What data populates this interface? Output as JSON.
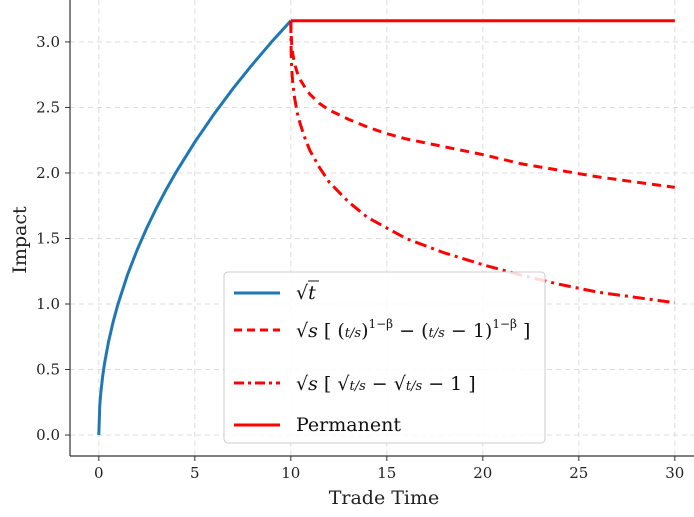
{
  "chart_data": {
    "type": "line",
    "title": "",
    "xlabel": "Trade Time",
    "ylabel": "Impact",
    "xlim": [
      -1.5,
      31.0
    ],
    "ylim": [
      -0.16,
      3.32
    ],
    "xticks": [
      0,
      5,
      10,
      15,
      20,
      25,
      30
    ],
    "yticks": [
      0.0,
      0.5,
      1.0,
      1.5,
      2.0,
      2.5,
      3.0
    ],
    "xtick_labels": [
      "0",
      "5",
      "10",
      "15",
      "20",
      "25",
      "30"
    ],
    "ytick_labels": [
      "0.0",
      "0.5",
      "1.0",
      "1.5",
      "2.0",
      "2.5",
      "3.0"
    ],
    "grid": true,
    "legend_position": "lower-center",
    "series": [
      {
        "name": "√t",
        "color": "#1f77b4",
        "style": "solid",
        "x": [
          0,
          0.05,
          0.1,
          0.2,
          0.3,
          0.5,
          0.75,
          1,
          1.5,
          2,
          2.5,
          3,
          3.5,
          4,
          5,
          6,
          7,
          8,
          9,
          10
        ],
        "y": [
          0,
          0.224,
          0.316,
          0.447,
          0.548,
          0.707,
          0.866,
          1.0,
          1.225,
          1.414,
          1.581,
          1.732,
          1.871,
          2.0,
          2.236,
          2.449,
          2.646,
          2.828,
          3.0,
          3.162
        ]
      },
      {
        "name": "√s [(t/s)^(1−β) − (t/s − 1)^(1−β)]",
        "color": "#ff0000",
        "style": "dashed",
        "x": [
          10,
          10.02,
          10.05,
          10.1,
          10.2,
          10.35,
          10.5,
          10.75,
          11,
          11.5,
          12,
          13,
          14,
          15,
          16,
          18,
          20,
          22,
          24,
          26,
          28,
          30
        ],
        "y": [
          3.16,
          3.05,
          2.98,
          2.91,
          2.83,
          2.76,
          2.71,
          2.65,
          2.6,
          2.53,
          2.48,
          2.41,
          2.35,
          2.3,
          2.26,
          2.2,
          2.14,
          2.07,
          2.02,
          1.97,
          1.93,
          1.89
        ]
      },
      {
        "name": "√s [√(t/s) − √(t/s − 1)]",
        "color": "#ff0000",
        "style": "dashdot",
        "x": [
          10,
          10.02,
          10.05,
          10.1,
          10.2,
          10.35,
          10.5,
          10.75,
          11,
          11.5,
          12,
          13,
          14,
          15,
          16,
          18,
          20,
          22,
          24,
          26,
          28,
          30
        ],
        "y": [
          3.16,
          2.91,
          2.79,
          2.69,
          2.57,
          2.45,
          2.37,
          2.26,
          2.17,
          2.04,
          1.93,
          1.78,
          1.66,
          1.58,
          1.5,
          1.39,
          1.3,
          1.22,
          1.15,
          1.09,
          1.05,
          1.01
        ]
      },
      {
        "name": "Permanent",
        "color": "#ff0000",
        "style": "solid",
        "x": [
          10,
          30
        ],
        "y": [
          3.162,
          3.162
        ]
      }
    ]
  }
}
